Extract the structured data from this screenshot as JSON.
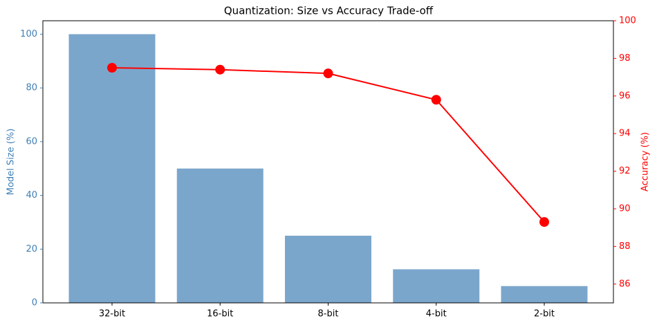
{
  "chart_data": {
    "type": "bar_line",
    "title": "Quantization: Size vs Accuracy Trade-off",
    "categories": [
      "32-bit",
      "16-bit",
      "8-bit",
      "4-bit",
      "2-bit"
    ],
    "y_label": "Model Size (%)",
    "y2_label": "Accuracy (%)",
    "series": [
      {
        "name": "Model Size (%)",
        "kind": "bar",
        "color": "#7ba6cc",
        "values": [
          100,
          50,
          25,
          12.5,
          6.25
        ]
      },
      {
        "name": "Accuracy (%)",
        "kind": "line",
        "axis": "y2",
        "color": "#ff0000",
        "values": [
          97.5,
          97.4,
          97.2,
          95.8,
          89.3
        ]
      }
    ],
    "ylim": [
      0,
      105
    ],
    "yticks": [
      0,
      20,
      40,
      60,
      80,
      100
    ],
    "y_color": "#3f7fb5",
    "y2lim": [
      85,
      100
    ],
    "y2ticks": [
      86,
      88,
      90,
      92,
      94,
      96,
      98,
      100
    ],
    "y2_color": "#ff0000",
    "grid": false
  }
}
